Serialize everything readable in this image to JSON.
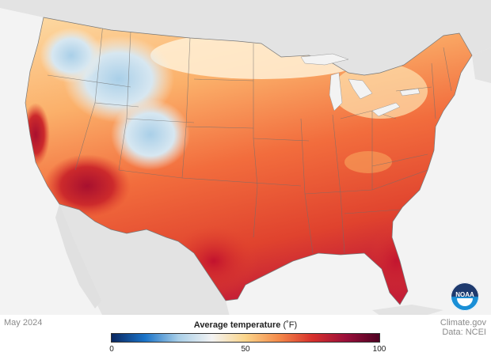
{
  "map": {
    "date": "May 2024",
    "legend": {
      "title": "Average temperature",
      "unit": "(˚F)",
      "ticks": [
        "0",
        "50",
        "100"
      ],
      "colors": [
        "#0a2760",
        "#1a73c8",
        "#a9cfe8",
        "#f3f3f3",
        "#fbd58a",
        "#f48a4a",
        "#d7302c",
        "#9a0f3a",
        "#4e0222"
      ]
    },
    "credit": {
      "line1": "Climate.gov",
      "line2": "Data: NCEI"
    },
    "logo": {
      "text": "NOAA"
    },
    "land_color": "#e3e3e3",
    "ocean_color": "#f3f3f3"
  }
}
